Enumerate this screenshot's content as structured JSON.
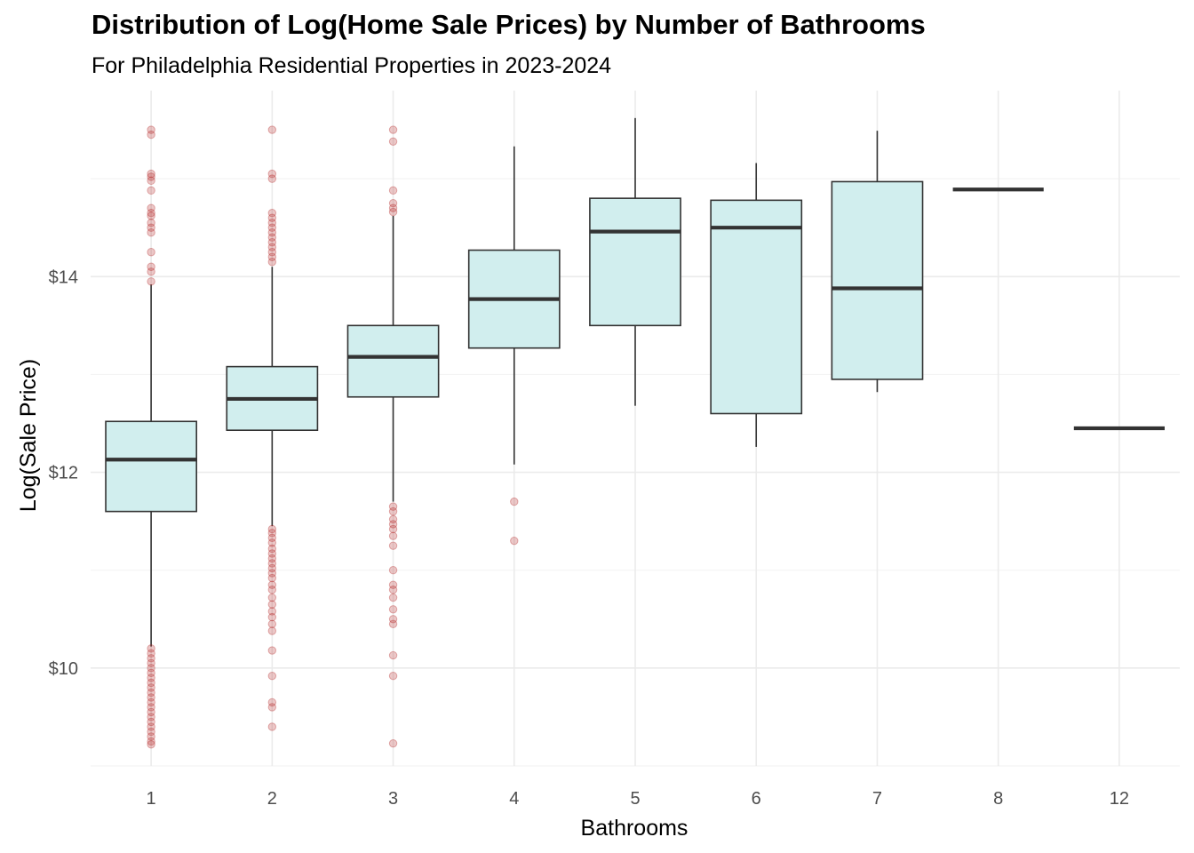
{
  "chart_data": {
    "type": "boxplot",
    "title": "Distribution of Log(Home Sale Prices) by Number of Bathrooms",
    "subtitle": "For Philadelphia Residential Properties in 2023-2024",
    "xlabel": "Bathrooms",
    "ylabel": "Log(Sale Price)",
    "ylim": [
      9.0,
      15.9
    ],
    "yticks": [
      10,
      12,
      14
    ],
    "ytick_labels": [
      "$10",
      "$12",
      "$14"
    ],
    "grid": true,
    "categories": [
      "1",
      "2",
      "3",
      "4",
      "5",
      "6",
      "7",
      "8",
      "12"
    ],
    "colors": {
      "box_fill": "#d1eeee",
      "box_line": "#333333",
      "outlier": "#b22222",
      "grid_major": "#ebebeb",
      "grid_minor": "#f4f4f4"
    },
    "boxes": [
      {
        "category": "1",
        "whisker_low": 10.22,
        "q1": 11.6,
        "median": 12.13,
        "q3": 12.52,
        "whisker_high": 13.92,
        "outliers": [
          15.5,
          15.45,
          15.05,
          15.02,
          14.98,
          14.88,
          14.7,
          14.65,
          14.62,
          14.55,
          14.5,
          14.45,
          14.25,
          14.1,
          14.05,
          13.95,
          10.2,
          10.15,
          10.1,
          10.05,
          10.0,
          9.95,
          9.9,
          9.85,
          9.8,
          9.75,
          9.7,
          9.65,
          9.6,
          9.55,
          9.5,
          9.45,
          9.4,
          9.35,
          9.3,
          9.25,
          9.22
        ]
      },
      {
        "category": "2",
        "whisker_low": 11.45,
        "q1": 12.43,
        "median": 12.75,
        "q3": 13.08,
        "whisker_high": 14.1,
        "outliers": [
          15.5,
          15.05,
          15.0,
          14.65,
          14.6,
          14.55,
          14.5,
          14.45,
          14.4,
          14.35,
          14.3,
          14.25,
          14.2,
          14.15,
          11.42,
          11.38,
          11.33,
          11.28,
          11.22,
          11.17,
          11.12,
          11.07,
          11.02,
          10.97,
          10.92,
          10.85,
          10.8,
          10.72,
          10.65,
          10.58,
          10.52,
          10.45,
          10.38,
          10.18,
          9.92,
          9.65,
          9.6,
          9.4
        ]
      },
      {
        "category": "3",
        "whisker_low": 11.7,
        "q1": 12.77,
        "median": 13.18,
        "q3": 13.5,
        "whisker_high": 14.62,
        "outliers": [
          15.5,
          15.38,
          14.88,
          14.75,
          14.7,
          14.66,
          11.65,
          11.6,
          11.52,
          11.47,
          11.42,
          11.35,
          11.25,
          11.0,
          10.85,
          10.8,
          10.72,
          10.6,
          10.5,
          10.45,
          10.13,
          9.92,
          9.23
        ]
      },
      {
        "category": "4",
        "whisker_low": 12.08,
        "q1": 13.27,
        "median": 13.77,
        "q3": 14.27,
        "whisker_high": 15.33,
        "outliers": [
          11.7,
          11.3
        ]
      },
      {
        "category": "5",
        "whisker_low": 12.68,
        "q1": 13.5,
        "median": 14.46,
        "q3": 14.8,
        "whisker_high": 15.62,
        "outliers": []
      },
      {
        "category": "6",
        "whisker_low": 12.26,
        "q1": 12.6,
        "median": 14.5,
        "q3": 14.78,
        "whisker_high": 15.16,
        "outliers": []
      },
      {
        "category": "7",
        "whisker_low": 12.82,
        "q1": 12.95,
        "median": 13.88,
        "q3": 14.97,
        "whisker_high": 15.49,
        "outliers": []
      },
      {
        "category": "8",
        "whisker_low": 14.89,
        "q1": 14.89,
        "median": 14.89,
        "q3": 14.89,
        "whisker_high": 14.89,
        "outliers": []
      },
      {
        "category": "12",
        "whisker_low": 12.45,
        "q1": 12.45,
        "median": 12.45,
        "q3": 12.45,
        "whisker_high": 12.45,
        "outliers": []
      }
    ]
  }
}
